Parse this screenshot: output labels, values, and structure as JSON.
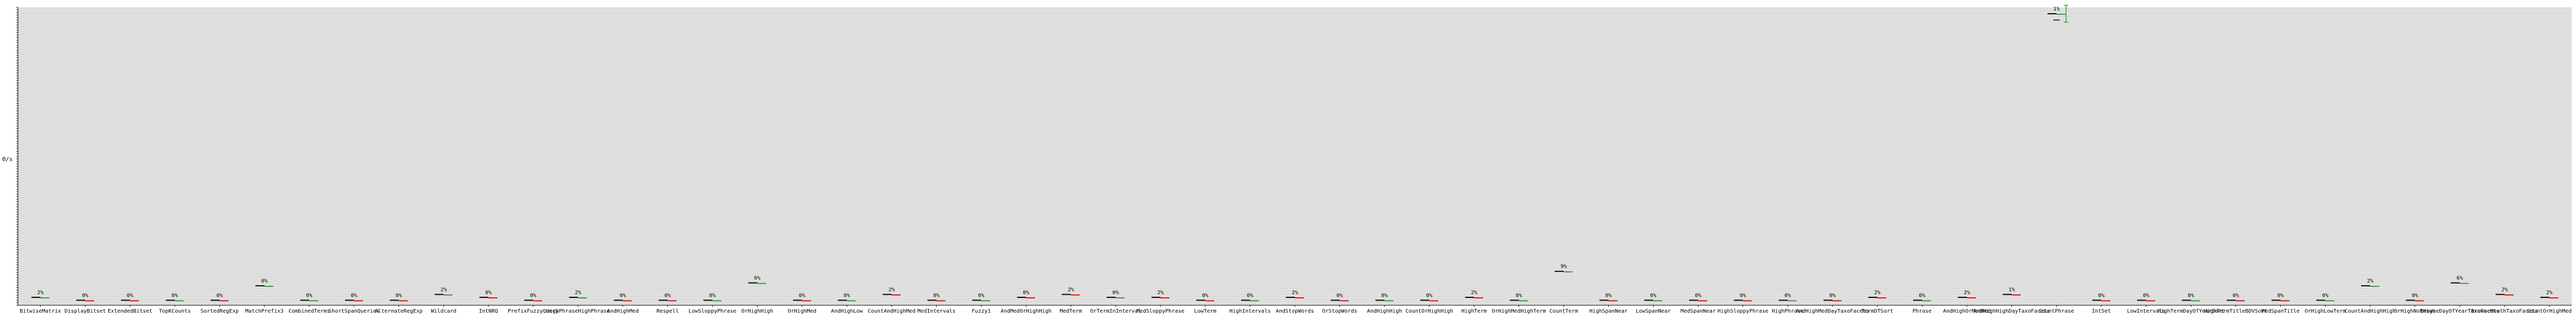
{
  "chart_data": {
    "type": "bar",
    "ylabel": "0/s",
    "ylim": [
      0,
      1
    ],
    "grid": true,
    "legend": "none",
    "categories": [
      "BitwiseMatrix",
      "DisplayBitset",
      "ExtendedBitset",
      "TopKCounts",
      "SortedRegExp",
      "MatchPrefix3",
      "CombinedTerms",
      "ShortSpanQueries",
      "AlternateRegExp",
      "Wildcard",
      "IntNRQ",
      "PrefixFuzzyQuery",
      "HighPhraseHighPhrase",
      "AndHighMed",
      "Respell",
      "LowSloppyPhrase",
      "OrHighHigh",
      "OrHighMed",
      "AndHighLow",
      "CountAndHighMed",
      "MedIntervals",
      "Fuzzy1",
      "AndMedOrHighHigh",
      "MedTerm",
      "OrTermInInterval",
      "MedSloppyPhrase",
      "LowTerm",
      "HighIntervals",
      "AndStopWords",
      "OrStopWords",
      "AndHighHigh",
      "CountOrHighHigh",
      "HighTerm",
      "OrHighMedHighTerm",
      "CountTerm",
      "HighSpanNear",
      "LowSpanNear",
      "MedSpanNear",
      "HighSloppyPhrase",
      "HighPhrase",
      "AndHighMedDayTaxoFacets",
      "TermDTSort",
      "Phrase",
      "AndHighOrMedMed",
      "AndHighHighDayTaxoFacets",
      "CountPhrase",
      "IntSet",
      "LowIntervals",
      "HighTermDayOfYearSort",
      "HighTermTitleBDVSort",
      "MedSpanTitle",
      "OrHighLowTerm",
      "CountAndHighHigh",
      "OrHighNotHigh",
      "BrowseDayOfYearTaxoFacets",
      "BrowseMonthTaxoFacets",
      "CountOrHighMed"
    ],
    "series": [
      {
        "values": [
          0.02,
          0.01,
          0.01,
          0.01,
          0.01,
          0.06,
          0.01,
          0.01,
          0.01,
          0.03,
          0.02,
          0.01,
          0.02,
          0.01,
          0.01,
          0.01,
          0.07,
          0.01,
          0.01,
          0.03,
          0.01,
          0.01,
          0.02,
          0.03,
          0.02,
          0.02,
          0.01,
          0.01,
          0.02,
          0.01,
          0.01,
          0.01,
          0.02,
          0.01,
          0.11,
          0.01,
          0.01,
          0.01,
          0.01,
          0.01,
          0.01,
          0.02,
          0.01,
          0.02,
          0.03,
          1.0,
          0.01,
          0.01,
          0.01,
          0.01,
          0.01,
          0.01,
          0.06,
          0.01,
          0.07,
          0.03,
          0.02
        ]
      }
    ],
    "bar_labels": [
      "2%",
      "0%",
      "0%",
      "0%",
      "0%",
      "0%",
      "0%",
      "0%",
      "0%",
      "2%",
      "0%",
      "0%",
      "2%",
      "0%",
      "0%",
      "0%",
      "6%",
      "0%",
      "0%",
      "2%",
      "0%",
      "0%",
      "0%",
      "2%",
      "0%",
      "2%",
      "0%",
      "0%",
      "2%",
      "0%",
      "0%",
      "0%",
      "2%",
      "0%",
      "9%",
      "0%",
      "0%",
      "0%",
      "0%",
      "0%",
      "0%",
      "2%",
      "0%",
      "2%",
      "1%",
      "1%",
      "0%",
      "0%",
      "0%",
      "0%",
      "0%",
      "0%",
      "2%",
      "0%",
      "6%",
      "2%",
      "2%"
    ],
    "colors": {
      "plot_bg": "#dcdcdc",
      "grid": "#e8e8e8",
      "bar": "#000000",
      "improvement": "#2ca02c",
      "regression": "#ff0000",
      "error_bar": "#2ca02c"
    }
  }
}
